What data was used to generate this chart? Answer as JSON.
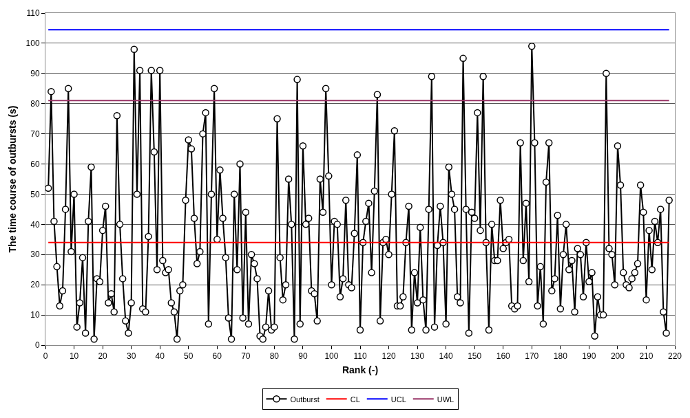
{
  "chart_data": {
    "type": "line",
    "xlabel": "Rank (-)",
    "ylabel": "The time course of outbursts (s)",
    "xlim": [
      0,
      220
    ],
    "xticks": [
      0,
      10,
      20,
      30,
      40,
      50,
      60,
      70,
      80,
      90,
      100,
      110,
      120,
      130,
      140,
      150,
      160,
      170,
      180,
      190,
      200,
      210,
      220
    ],
    "ylim": [
      0,
      110
    ],
    "yticks": [
      0,
      10,
      20,
      30,
      40,
      50,
      60,
      70,
      80,
      90,
      100,
      110
    ],
    "grid": "y",
    "legend": "bottom",
    "series": [
      {
        "name": "Outburst",
        "color": "#000000",
        "marker": "circle",
        "x": [
          1,
          2,
          3,
          4,
          5,
          6,
          7,
          8,
          9,
          10,
          11,
          12,
          13,
          14,
          15,
          16,
          17,
          18,
          19,
          20,
          21,
          22,
          23,
          24,
          25,
          26,
          27,
          28,
          29,
          30,
          31,
          32,
          33,
          34,
          35,
          36,
          37,
          38,
          39,
          40,
          41,
          42,
          43,
          44,
          45,
          46,
          47,
          48,
          49,
          50,
          51,
          52,
          53,
          54,
          55,
          56,
          57,
          58,
          59,
          60,
          61,
          62,
          63,
          64,
          65,
          66,
          67,
          68,
          69,
          70,
          71,
          72,
          73,
          74,
          75,
          76,
          77,
          78,
          79,
          80,
          81,
          82,
          83,
          84,
          85,
          86,
          87,
          88,
          89,
          90,
          91,
          92,
          93,
          94,
          95,
          96,
          97,
          98,
          99,
          100,
          101,
          102,
          103,
          104,
          105,
          106,
          107,
          108,
          109,
          110,
          111,
          112,
          113,
          114,
          115,
          116,
          117,
          118,
          119,
          120,
          121,
          122,
          123,
          124,
          125,
          126,
          127,
          128,
          129,
          130,
          131,
          132,
          133,
          134,
          135,
          136,
          137,
          138,
          139,
          140,
          141,
          142,
          143,
          144,
          145,
          146,
          147,
          148,
          149,
          150,
          151,
          152,
          153,
          154,
          155,
          156,
          157,
          158,
          159,
          160,
          161,
          162,
          163,
          164,
          165,
          166,
          167,
          168,
          169,
          170,
          171,
          172,
          173,
          174,
          175,
          176,
          177,
          178,
          179,
          180,
          181,
          182,
          183,
          184,
          185,
          186,
          187,
          188,
          189,
          190,
          191,
          192,
          193,
          194,
          195,
          196,
          197,
          198,
          199,
          200,
          201,
          202,
          203,
          204,
          205,
          206,
          207,
          208,
          209,
          210,
          211,
          212,
          213,
          214,
          215,
          216,
          217,
          218
        ],
        "values": [
          52,
          84,
          41,
          26,
          13,
          18,
          45,
          85,
          31,
          50,
          6,
          14,
          29,
          4,
          41,
          59,
          2,
          22,
          21,
          38,
          46,
          14,
          17,
          11,
          76,
          40,
          22,
          8,
          4,
          14,
          98,
          50,
          91,
          12,
          11,
          36,
          91,
          64,
          25,
          91,
          28,
          24,
          25,
          14,
          11,
          2,
          18,
          20,
          48,
          68,
          65,
          42,
          27,
          31,
          70,
          77,
          7,
          50,
          85,
          35,
          58,
          42,
          29,
          9,
          2,
          50,
          25,
          60,
          9,
          44,
          7,
          30,
          27,
          22,
          3,
          2,
          6,
          18,
          5,
          6,
          75,
          29,
          15,
          20,
          55,
          40,
          2,
          88,
          7,
          66,
          40,
          42,
          18,
          17,
          8,
          55,
          44,
          85,
          56,
          20,
          41,
          40,
          16,
          22,
          48,
          20,
          19,
          37,
          63,
          5,
          34,
          41,
          47,
          24,
          51,
          83,
          8,
          34,
          35,
          30,
          50,
          71,
          13,
          13,
          16,
          34,
          46,
          5,
          24,
          14,
          39,
          15,
          5,
          45,
          89,
          6,
          33,
          46,
          34,
          7,
          59,
          50,
          45,
          16,
          14,
          95,
          45,
          4,
          44,
          42,
          77,
          38,
          89,
          34,
          5,
          40,
          28,
          28,
          48,
          32,
          34,
          35,
          13,
          12,
          13,
          67,
          28,
          47,
          21,
          99,
          67,
          13,
          26,
          7,
          54,
          67,
          18,
          22,
          43,
          12,
          30,
          40,
          25,
          28,
          11,
          32,
          30,
          16,
          34,
          21,
          24,
          3,
          16,
          10,
          10,
          90,
          32,
          30,
          20,
          66,
          53,
          24,
          20,
          19,
          22,
          24,
          27,
          53,
          44,
          15,
          38,
          25,
          41,
          34,
          45,
          11,
          4,
          48
        ]
      },
      {
        "name": "CL",
        "color": "#ff0000",
        "marker": "none",
        "x": [
          1,
          218
        ],
        "values": [
          34,
          34
        ]
      },
      {
        "name": "UCL",
        "color": "#0000ff",
        "marker": "none",
        "x": [
          1,
          218
        ],
        "values": [
          104.5,
          104.5
        ]
      },
      {
        "name": "UWL",
        "color": "#993366",
        "marker": "none",
        "x": [
          1,
          218
        ],
        "values": [
          81,
          81
        ]
      }
    ]
  }
}
